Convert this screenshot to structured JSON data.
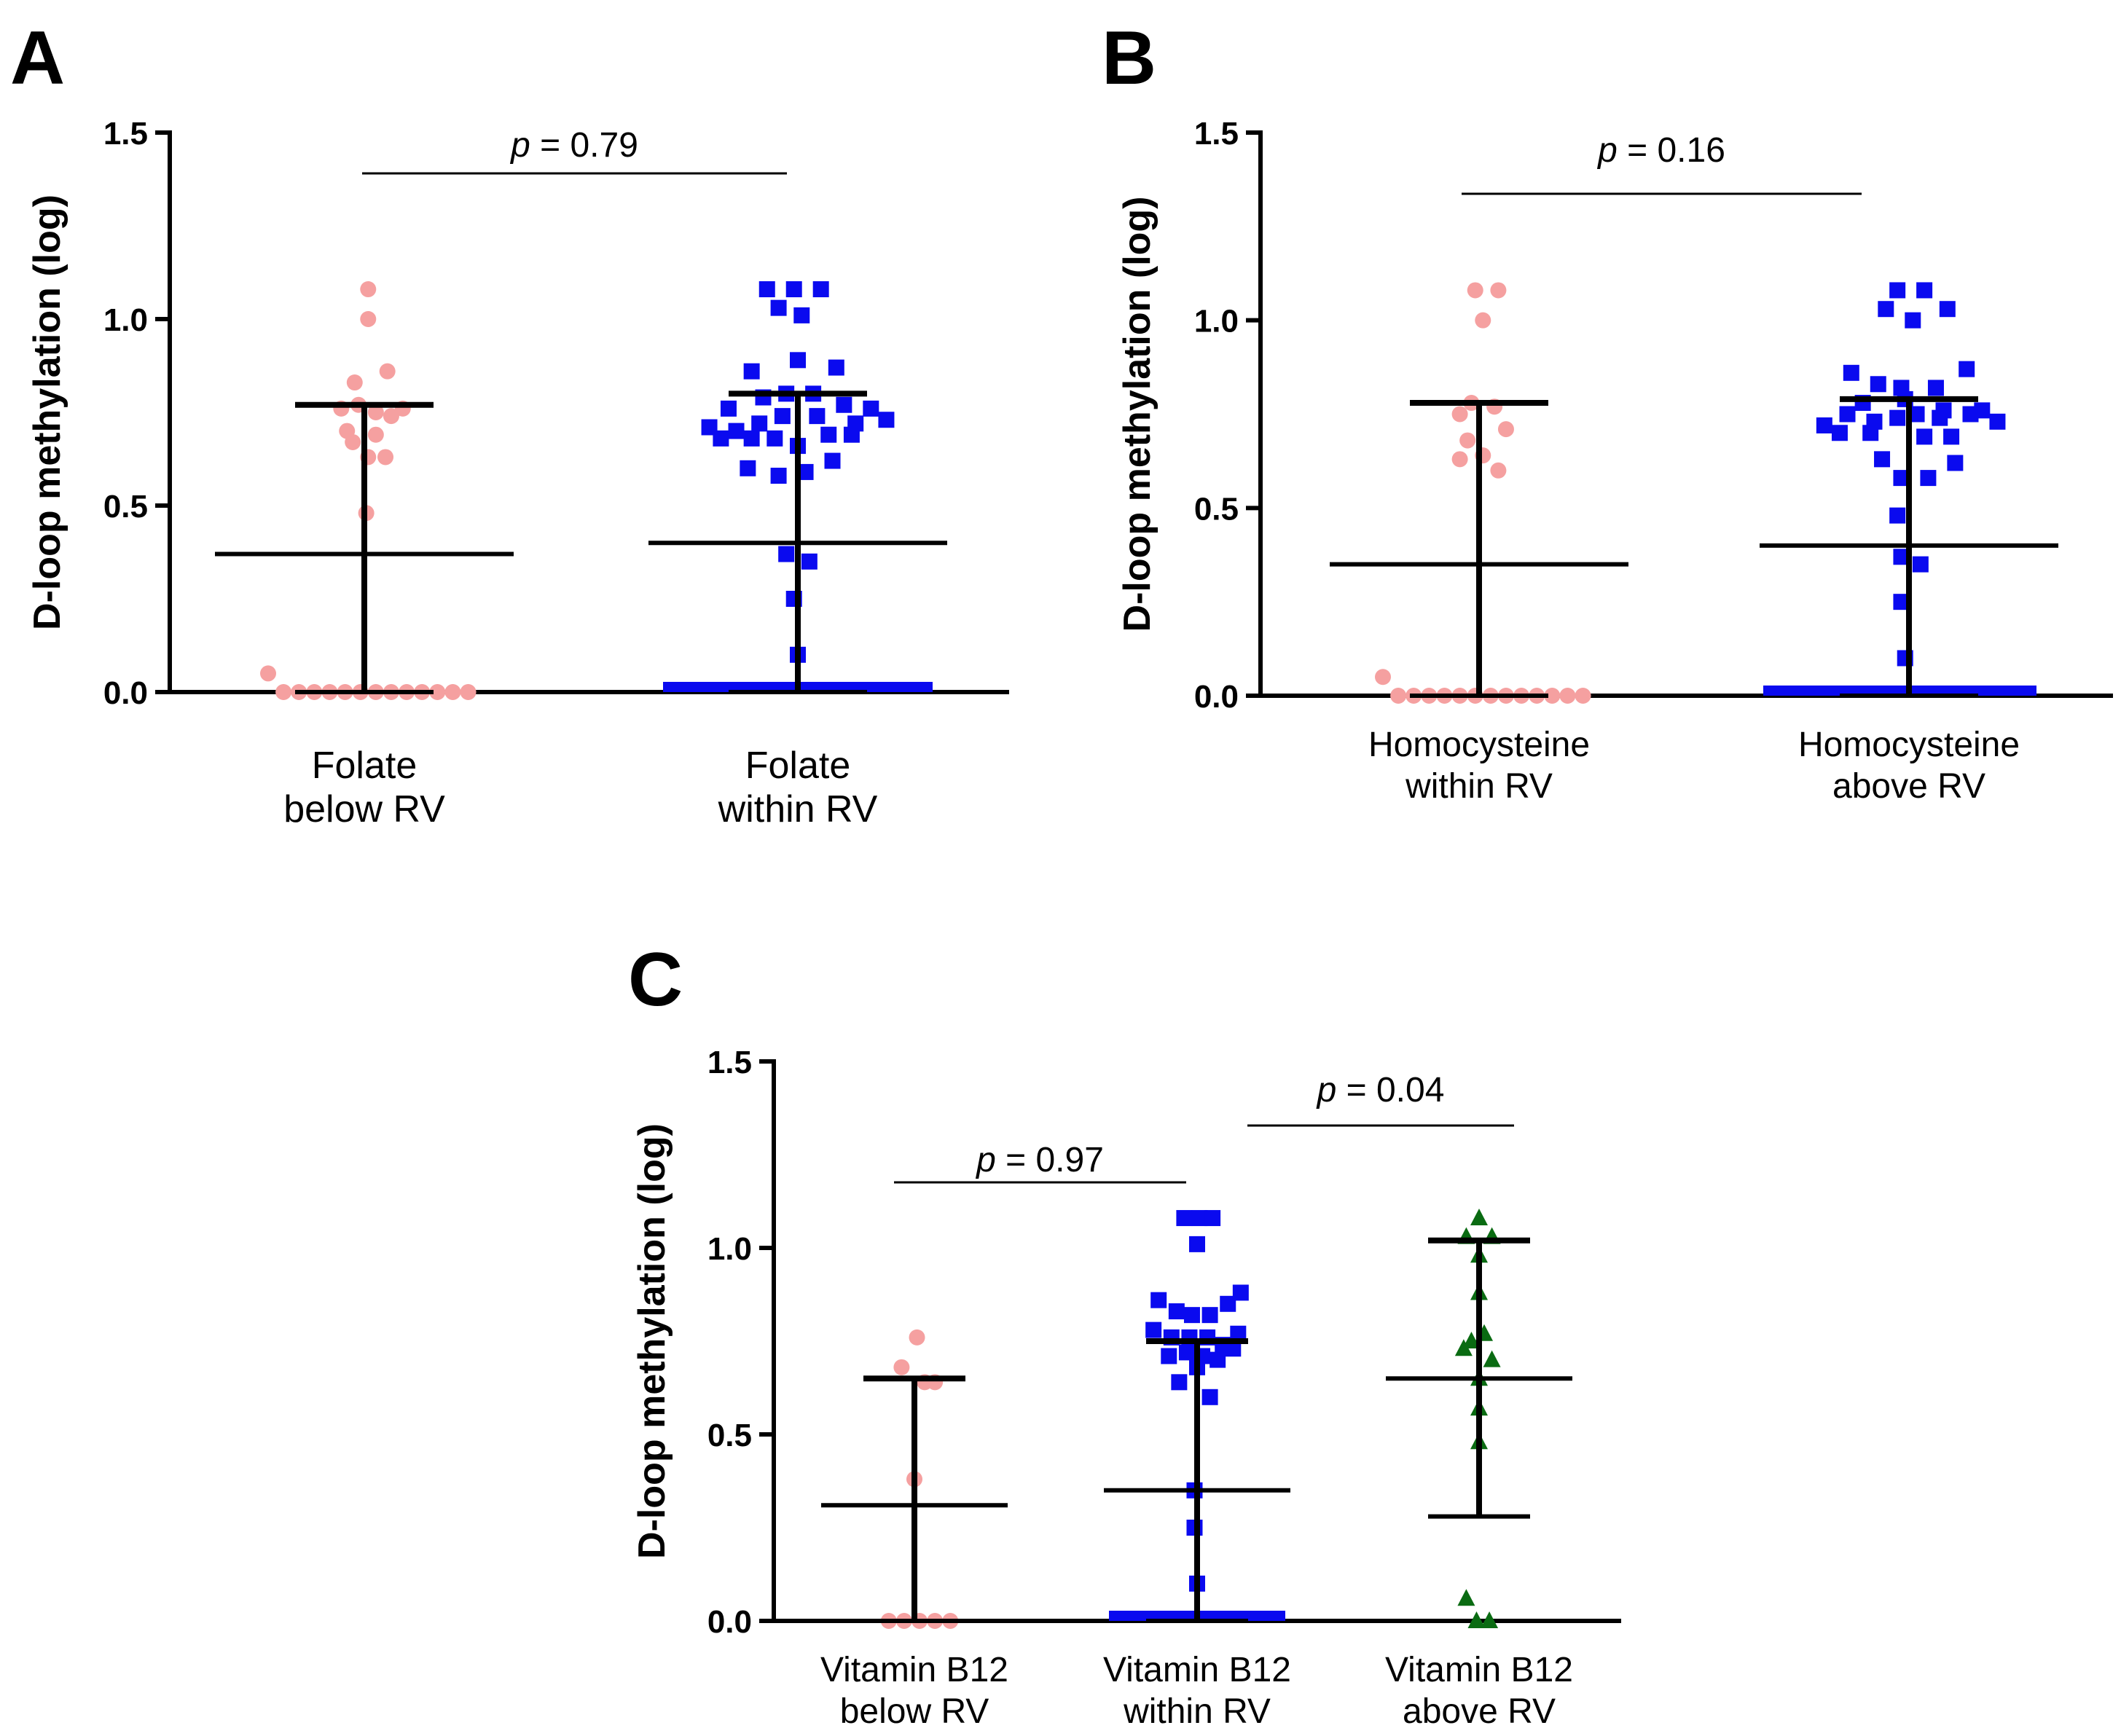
{
  "figure_panels": [
    "A",
    "B",
    "C"
  ],
  "chart_data": [
    {
      "panel": "A",
      "type": "scatter",
      "ylabel": "D-loop methylation (log)",
      "ylim": [
        0,
        1.5
      ],
      "yticks": [
        "0.0",
        "0.5",
        "1.0",
        "1.5"
      ],
      "categories": [
        [
          "Folate",
          "below RV"
        ],
        [
          "Folate",
          "within RV"
        ]
      ],
      "groups": [
        {
          "name": "Folate below RV",
          "marker": "circle",
          "color": "#f5a0a0",
          "mean": 0.37,
          "sd_low": 0.0,
          "sd_high": 0.77,
          "points": [
            [
              -0.5,
              0.05
            ],
            [
              -0.42,
              0
            ],
            [
              -0.34,
              0
            ],
            [
              -0.26,
              0
            ],
            [
              -0.18,
              0
            ],
            [
              -0.1,
              0
            ],
            [
              -0.02,
              0
            ],
            [
              0.06,
              0
            ],
            [
              0.14,
              0
            ],
            [
              0.22,
              0
            ],
            [
              0.3,
              0
            ],
            [
              0.38,
              0
            ],
            [
              0.46,
              0
            ],
            [
              0.54,
              0
            ],
            [
              0.02,
              1.08
            ],
            [
              0.02,
              1.0
            ],
            [
              -0.05,
              0.83
            ],
            [
              0.12,
              0.86
            ],
            [
              -0.12,
              0.76
            ],
            [
              -0.03,
              0.77
            ],
            [
              0.06,
              0.75
            ],
            [
              0.14,
              0.74
            ],
            [
              0.2,
              0.76
            ],
            [
              -0.06,
              0.67
            ],
            [
              0.06,
              0.69
            ],
            [
              -0.09,
              0.7
            ],
            [
              0.02,
              0.63
            ],
            [
              0.11,
              0.63
            ],
            [
              0.01,
              0.48
            ]
          ]
        },
        {
          "name": "Folate within RV",
          "marker": "square",
          "color": "#0a0aef",
          "mean": 0.4,
          "sd_low": 0.0,
          "sd_high": 0.8,
          "blue_band": true,
          "points": [
            [
              -0.16,
              1.08
            ],
            [
              -0.02,
              1.08
            ],
            [
              0.12,
              1.08
            ],
            [
              -0.1,
              1.03
            ],
            [
              0.02,
              1.01
            ],
            [
              -0.24,
              0.86
            ],
            [
              0,
              0.89
            ],
            [
              0.2,
              0.87
            ],
            [
              -0.36,
              0.76
            ],
            [
              -0.18,
              0.79
            ],
            [
              -0.06,
              0.8
            ],
            [
              0.08,
              0.8
            ],
            [
              0.24,
              0.77
            ],
            [
              0.38,
              0.76
            ],
            [
              -0.46,
              0.71
            ],
            [
              -0.32,
              0.7
            ],
            [
              -0.2,
              0.72
            ],
            [
              -0.08,
              0.74
            ],
            [
              0.1,
              0.74
            ],
            [
              0.3,
              0.72
            ],
            [
              0.46,
              0.73
            ],
            [
              -0.4,
              0.68
            ],
            [
              -0.24,
              0.68
            ],
            [
              -0.12,
              0.68
            ],
            [
              0.0,
              0.66
            ],
            [
              0.16,
              0.69
            ],
            [
              0.28,
              0.69
            ],
            [
              -0.26,
              0.6
            ],
            [
              -0.1,
              0.58
            ],
            [
              0.04,
              0.59
            ],
            [
              0.18,
              0.62
            ],
            [
              -0.06,
              0.37
            ],
            [
              0.06,
              0.35
            ],
            [
              -0.02,
              0.25
            ],
            [
              0.0,
              0.1
            ]
          ]
        }
      ],
      "annotations": [
        {
          "text": "= 0.79",
          "p_symbol": "p",
          "from": 0,
          "to": 1
        }
      ]
    },
    {
      "panel": "B",
      "type": "scatter",
      "ylabel": "D-loop methylation (log)",
      "ylim": [
        0,
        1.5
      ],
      "yticks": [
        "0.0",
        "0.5",
        "1.0",
        "1.5"
      ],
      "categories": [
        [
          "Homocysteine",
          "within RV"
        ],
        [
          "Homocysteine",
          "above RV"
        ]
      ],
      "groups": [
        {
          "name": "Homocysteine within RV",
          "marker": "circle",
          "color": "#f5a0a0",
          "mean": 0.35,
          "sd_low": 0.0,
          "sd_high": 0.78,
          "points": [
            [
              -0.5,
              0.05
            ],
            [
              -0.42,
              0
            ],
            [
              -0.34,
              0
            ],
            [
              -0.26,
              0
            ],
            [
              -0.18,
              0
            ],
            [
              -0.1,
              0
            ],
            [
              -0.02,
              0
            ],
            [
              0.06,
              0
            ],
            [
              0.14,
              0
            ],
            [
              0.22,
              0
            ],
            [
              0.3,
              0
            ],
            [
              0.38,
              0
            ],
            [
              0.46,
              0
            ],
            [
              0.54,
              0
            ],
            [
              -0.02,
              1.08
            ],
            [
              0.1,
              1.08
            ],
            [
              0.02,
              1.0
            ],
            [
              -0.1,
              0.75
            ],
            [
              0.08,
              0.77
            ],
            [
              -0.04,
              0.78
            ],
            [
              -0.06,
              0.68
            ],
            [
              0.14,
              0.71
            ],
            [
              -0.1,
              0.63
            ],
            [
              0.02,
              0.64
            ],
            [
              0.1,
              0.6
            ]
          ]
        },
        {
          "name": "Homocysteine above RV",
          "marker": "square",
          "color": "#0a0aef",
          "mean": 0.4,
          "sd_low": 0.0,
          "sd_high": 0.79,
          "blue_band": true,
          "points": [
            [
              -0.06,
              1.08
            ],
            [
              0.08,
              1.08
            ],
            [
              -0.12,
              1.03
            ],
            [
              0.2,
              1.03
            ],
            [
              0.02,
              1.0
            ],
            [
              -0.3,
              0.86
            ],
            [
              -0.16,
              0.83
            ],
            [
              -0.04,
              0.82
            ],
            [
              0.14,
              0.82
            ],
            [
              0.3,
              0.87
            ],
            [
              -0.24,
              0.78
            ],
            [
              -0.02,
              0.79
            ],
            [
              0.18,
              0.76
            ],
            [
              0.38,
              0.76
            ],
            [
              -0.44,
              0.72
            ],
            [
              -0.32,
              0.75
            ],
            [
              -0.18,
              0.73
            ],
            [
              -0.06,
              0.74
            ],
            [
              0.04,
              0.75
            ],
            [
              0.16,
              0.74
            ],
            [
              0.32,
              0.75
            ],
            [
              0.46,
              0.73
            ],
            [
              -0.36,
              0.7
            ],
            [
              -0.2,
              0.7
            ],
            [
              0.08,
              0.69
            ],
            [
              0.22,
              0.69
            ],
            [
              -0.14,
              0.63
            ],
            [
              -0.04,
              0.58
            ],
            [
              0.1,
              0.58
            ],
            [
              0.24,
              0.62
            ],
            [
              -0.06,
              0.48
            ],
            [
              -0.04,
              0.37
            ],
            [
              0.06,
              0.35
            ],
            [
              -0.04,
              0.25
            ],
            [
              -0.02,
              0.1
            ]
          ]
        }
      ],
      "annotations": [
        {
          "text": "= 0.16",
          "p_symbol": "p",
          "from": 0,
          "to": 1
        }
      ]
    },
    {
      "panel": "C",
      "type": "scatter",
      "ylabel": "D-loop methylation (log)",
      "ylim": [
        0,
        1.5
      ],
      "yticks": [
        "0.0",
        "0.5",
        "1.0",
        "1.5"
      ],
      "categories": [
        [
          "Vitamin B12",
          "below RV"
        ],
        [
          "Vitamin B12",
          "within RV"
        ],
        [
          "Vitamin B12",
          "above RV"
        ]
      ],
      "groups": [
        {
          "name": "Vitamin B12 below RV",
          "marker": "circle",
          "color": "#f5a0a0",
          "mean": 0.31,
          "sd_low": 0.0,
          "sd_high": 0.65,
          "points": [
            [
              -0.2,
              0
            ],
            [
              -0.08,
              0
            ],
            [
              0.04,
              0
            ],
            [
              0.16,
              0
            ],
            [
              0.28,
              0
            ],
            [
              0.02,
              0.76
            ],
            [
              -0.1,
              0.68
            ],
            [
              0.08,
              0.64
            ],
            [
              0.16,
              0.64
            ],
            [
              0.0,
              0.38
            ]
          ]
        },
        {
          "name": "Vitamin B12 within RV",
          "marker": "square",
          "color": "#0a0aef",
          "mean": 0.35,
          "sd_low": 0.0,
          "sd_high": 0.75,
          "blue_band": true,
          "points": [
            [
              -0.1,
              1.08
            ],
            [
              0.02,
              1.08
            ],
            [
              0.12,
              1.08
            ],
            [
              0.0,
              1.01
            ],
            [
              -0.3,
              0.86
            ],
            [
              -0.16,
              0.83
            ],
            [
              -0.04,
              0.82
            ],
            [
              0.1,
              0.82
            ],
            [
              0.24,
              0.85
            ],
            [
              0.34,
              0.88
            ],
            [
              -0.34,
              0.78
            ],
            [
              -0.2,
              0.76
            ],
            [
              -0.06,
              0.76
            ],
            [
              0.08,
              0.76
            ],
            [
              0.2,
              0.74
            ],
            [
              0.32,
              0.77
            ],
            [
              -0.22,
              0.71
            ],
            [
              -0.08,
              0.72
            ],
            [
              0.04,
              0.71
            ],
            [
              0.16,
              0.7
            ],
            [
              0.28,
              0.73
            ],
            [
              -0.14,
              0.64
            ],
            [
              0.0,
              0.68
            ],
            [
              0.1,
              0.6
            ],
            [
              -0.02,
              0.35
            ],
            [
              -0.02,
              0.25
            ],
            [
              0.0,
              0.1
            ]
          ]
        },
        {
          "name": "Vitamin B12 above RV",
          "marker": "triangle",
          "color": "#0a6b12",
          "mean": 0.65,
          "sd_low": 0.28,
          "sd_high": 1.02,
          "points": [
            [
              0.0,
              1.08
            ],
            [
              -0.1,
              1.03
            ],
            [
              0.1,
              1.03
            ],
            [
              0.0,
              0.98
            ],
            [
              0.0,
              0.88
            ],
            [
              0.04,
              0.77
            ],
            [
              -0.12,
              0.73
            ],
            [
              -0.06,
              0.75
            ],
            [
              0.1,
              0.7
            ],
            [
              0.0,
              0.65
            ],
            [
              0.0,
              0.57
            ],
            [
              0.0,
              0.48
            ],
            [
              -0.1,
              0.06
            ],
            [
              -0.02,
              0
            ],
            [
              0.08,
              0
            ]
          ]
        }
      ],
      "annotations": [
        {
          "text": "= 0.97",
          "p_symbol": "p",
          "from": 0,
          "to": 1
        },
        {
          "text": "= 0.04",
          "p_symbol": "p",
          "from": 1,
          "to": 2
        }
      ]
    }
  ]
}
